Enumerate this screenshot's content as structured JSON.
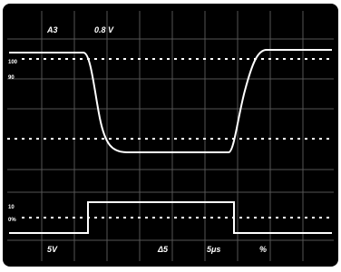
{
  "header": {
    "channel": "A3",
    "scale": "0.8 V"
  },
  "markers": {
    "top": "100",
    "upper": "90",
    "lower": "10",
    "bottom": "0%"
  },
  "footer": {
    "volts": "5V",
    "delta": "Δ5",
    "time": "5μs",
    "marker": "%"
  }
}
